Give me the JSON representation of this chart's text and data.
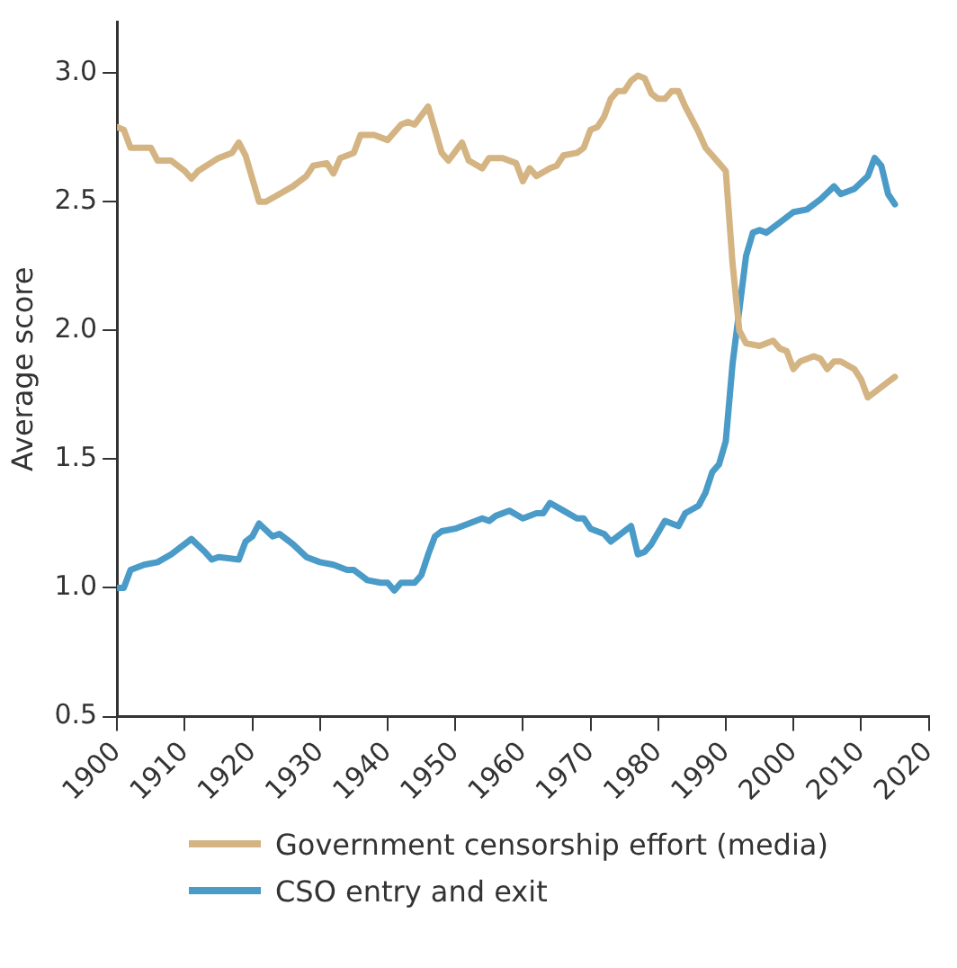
{
  "chart_data": {
    "type": "line",
    "ylabel": "Average score",
    "xlim": [
      1900,
      2020
    ],
    "xticks": [
      1900,
      1910,
      1920,
      1930,
      1940,
      1950,
      1960,
      1970,
      1980,
      1990,
      2000,
      2010,
      2020
    ],
    "ylim": [
      0.5,
      3.2
    ],
    "yticks": [
      0.5,
      {
        "value": 1,
        "label": "1.0"
      },
      1.5,
      {
        "value": 2,
        "label": "2.0"
      },
      2.5,
      {
        "value": 3,
        "label": "3.0"
      }
    ],
    "grid": false,
    "legend": "bottom",
    "marker": "none",
    "line_style": "solid",
    "series": [
      {
        "name": "Government censorship effort (media)",
        "color": "#d4b483",
        "x": [
          1900,
          1901,
          1902,
          1905,
          1906,
          1908,
          1910,
          1911,
          1912,
          1915,
          1917,
          1918,
          1919,
          1921,
          1922,
          1924,
          1926,
          1928,
          1929,
          1931,
          1932,
          1933,
          1935,
          1936,
          1938,
          1940,
          1942,
          1943,
          1944,
          1946,
          1948,
          1949,
          1951,
          1952,
          1954,
          1955,
          1957,
          1959,
          1960,
          1961,
          1962,
          1964,
          1965,
          1966,
          1968,
          1969,
          1970,
          1971,
          1972,
          1973,
          1974,
          1975,
          1976,
          1977,
          1978,
          1979,
          1980,
          1981,
          1982,
          1983,
          1984,
          1985,
          1986,
          1987,
          1988,
          1989,
          1990,
          1991,
          1992,
          1993,
          1995,
          1997,
          1998,
          1999,
          2000,
          2001,
          2003,
          2004,
          2005,
          2006,
          2007,
          2009,
          2010,
          2011,
          2012,
          2014,
          2015
        ],
        "values": [
          2.79,
          2.78,
          2.71,
          2.71,
          2.66,
          2.66,
          2.62,
          2.59,
          2.62,
          2.67,
          2.69,
          2.73,
          2.68,
          2.5,
          2.5,
          2.53,
          2.56,
          2.6,
          2.64,
          2.65,
          2.61,
          2.67,
          2.69,
          2.76,
          2.76,
          2.74,
          2.8,
          2.81,
          2.8,
          2.87,
          2.69,
          2.66,
          2.73,
          2.66,
          2.63,
          2.67,
          2.67,
          2.65,
          2.58,
          2.63,
          2.6,
          2.63,
          2.64,
          2.68,
          2.69,
          2.71,
          2.78,
          2.79,
          2.83,
          2.9,
          2.93,
          2.93,
          2.97,
          2.99,
          2.98,
          2.92,
          2.9,
          2.9,
          2.93,
          2.93,
          2.87,
          2.82,
          2.77,
          2.71,
          2.68,
          2.65,
          2.62,
          2.26,
          2.0,
          1.95,
          1.94,
          1.96,
          1.93,
          1.92,
          1.85,
          1.88,
          1.9,
          1.89,
          1.85,
          1.88,
          1.88,
          1.85,
          1.81,
          1.74,
          1.76,
          1.8,
          1.82
        ]
      },
      {
        "name": "CSO entry and exit",
        "color": "#4a9bc7",
        "x": [
          1900,
          1901,
          1902,
          1904,
          1906,
          1908,
          1911,
          1913,
          1914,
          1915,
          1918,
          1919,
          1920,
          1921,
          1923,
          1924,
          1926,
          1928,
          1930,
          1932,
          1934,
          1935,
          1937,
          1939,
          1940,
          1941,
          1942,
          1944,
          1945,
          1946,
          1947,
          1948,
          1950,
          1952,
          1954,
          1955,
          1956,
          1958,
          1960,
          1962,
          1963,
          1964,
          1966,
          1968,
          1969,
          1970,
          1972,
          1973,
          1974,
          1976,
          1977,
          1978,
          1979,
          1981,
          1983,
          1984,
          1986,
          1987,
          1988,
          1989,
          1990,
          1991,
          1993,
          1994,
          1995,
          1996,
          1998,
          2000,
          2002,
          2004,
          2006,
          2007,
          2009,
          2011,
          2012,
          2013,
          2014,
          2015
        ],
        "values": [
          1.0,
          1.0,
          1.07,
          1.09,
          1.1,
          1.13,
          1.19,
          1.14,
          1.11,
          1.12,
          1.11,
          1.18,
          1.2,
          1.25,
          1.2,
          1.21,
          1.17,
          1.12,
          1.1,
          1.09,
          1.07,
          1.07,
          1.03,
          1.02,
          1.02,
          0.99,
          1.02,
          1.02,
          1.05,
          1.13,
          1.2,
          1.22,
          1.23,
          1.25,
          1.27,
          1.26,
          1.28,
          1.3,
          1.27,
          1.29,
          1.29,
          1.33,
          1.3,
          1.27,
          1.27,
          1.23,
          1.21,
          1.18,
          1.2,
          1.24,
          1.13,
          1.14,
          1.17,
          1.26,
          1.24,
          1.29,
          1.32,
          1.37,
          1.45,
          1.48,
          1.57,
          1.87,
          2.29,
          2.38,
          2.39,
          2.38,
          2.42,
          2.46,
          2.47,
          2.51,
          2.56,
          2.53,
          2.55,
          2.6,
          2.67,
          2.64,
          2.53,
          2.49
        ]
      }
    ]
  }
}
